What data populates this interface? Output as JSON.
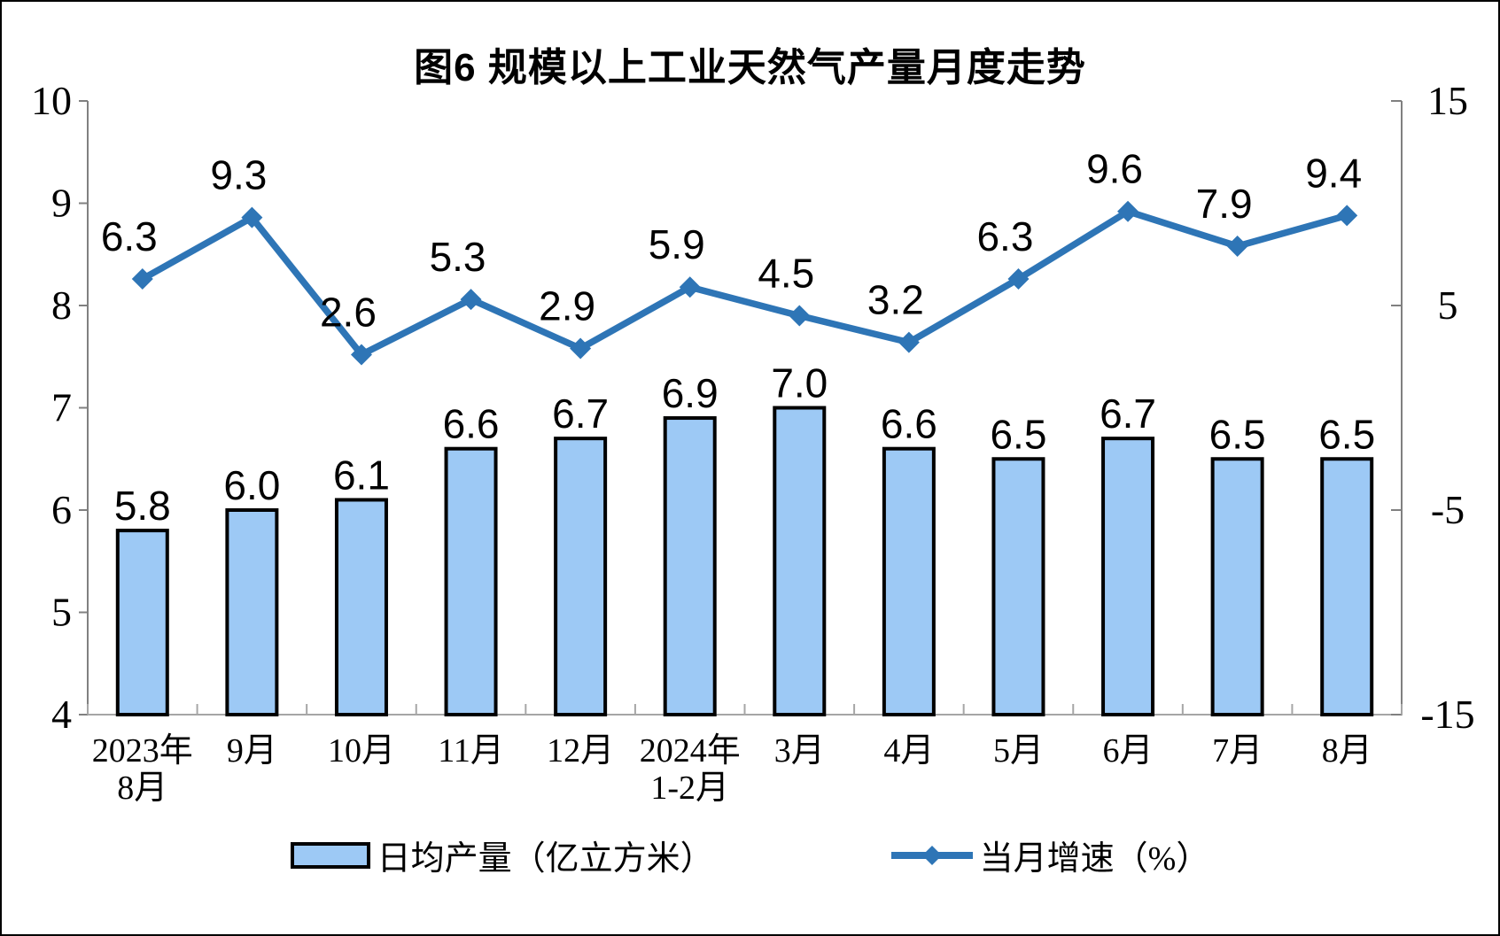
{
  "chart_data": {
    "type": "combo-bar-line",
    "title": "图6 规模以上工业天然气产量月度走势",
    "categories": [
      "2023年\n8月",
      "9月",
      "10月",
      "11月",
      "12月",
      "2024年\n1-2月",
      "3月",
      "4月",
      "5月",
      "6月",
      "7月",
      "8月"
    ],
    "series": [
      {
        "name": "日均产量（亿立方米）",
        "type": "bar",
        "axis": "left",
        "values": [
          5.8,
          6.0,
          6.1,
          6.6,
          6.7,
          6.9,
          7.0,
          6.6,
          6.5,
          6.7,
          6.5,
          6.5
        ],
        "fill": "#9DC9F5",
        "stroke": "#000000"
      },
      {
        "name": "当月增速（%）",
        "type": "line",
        "axis": "right",
        "values": [
          6.3,
          9.3,
          2.6,
          5.3,
          2.9,
          5.9,
          4.5,
          3.2,
          6.3,
          9.6,
          7.9,
          9.4
        ],
        "color": "#2E75B6",
        "marker": "diamond"
      }
    ],
    "left_axis": {
      "min": 4,
      "max": 10,
      "ticks": [
        "10",
        "9",
        "8",
        "7",
        "6",
        "5",
        "4"
      ]
    },
    "right_axis": {
      "min": -15,
      "max": 15,
      "ticks": [
        "15",
        "5",
        "-5",
        "-15"
      ]
    },
    "grid": false,
    "legend_position": "bottom",
    "colors": {
      "bar_fill": "#9DC9F5",
      "bar_border": "#000000",
      "line": "#2E75B6",
      "axis_side": "#808080",
      "axis_bottom": "#A6A6A6",
      "text": "#000000"
    }
  }
}
